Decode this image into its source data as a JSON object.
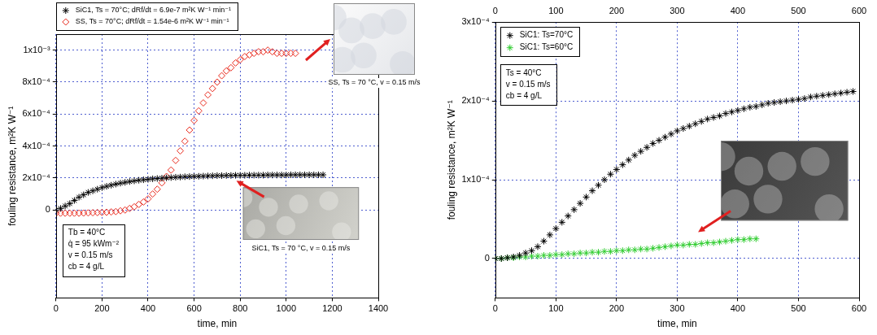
{
  "chart_data": [
    {
      "type": "scatter",
      "x_label": "time, min",
      "y_label": "fouling resistance, m²K W⁻¹",
      "xlim": [
        0,
        1400
      ],
      "xticks": [
        0,
        200,
        400,
        600,
        800,
        1000,
        1200,
        1400
      ],
      "ylim": [
        -0.00055,
        0.0011
      ],
      "yticks": [
        0,
        {
          "value": 0.0002,
          "label": "2x10⁻⁴"
        },
        {
          "value": 0.0004,
          "label": "4x10⁻⁴"
        },
        {
          "value": 0.0006,
          "label": "6x10⁻⁴"
        },
        {
          "value": 0.0008,
          "label": "8x10⁻⁴"
        },
        {
          "value": 0.001,
          "label": "1x10⁻³"
        }
      ],
      "grid": true,
      "legend": "top",
      "annotation": [
        "Tb = 40°C",
        "q̇ = 95 kWm⁻²",
        "v = 0.15 m/s",
        "cb = 4 g/L"
      ],
      "captions": [
        "SS, Ts = 70 °C, v = 0.15 m/s",
        "SiC1, Ts = 70 °C, v = 0.15 m/s"
      ],
      "series": [
        {
          "name": "SiC1, Ts = 70°C; dRf/dt = 6.9e-7 m²K W⁻¹ min⁻¹",
          "color": "#000000",
          "marker": "star",
          "x": [
            0,
            20,
            40,
            60,
            80,
            100,
            120,
            140,
            160,
            180,
            200,
            220,
            240,
            260,
            280,
            300,
            320,
            340,
            360,
            380,
            400,
            420,
            440,
            460,
            480,
            500,
            520,
            540,
            560,
            580,
            600,
            620,
            640,
            660,
            680,
            700,
            720,
            740,
            760,
            780,
            800,
            820,
            840,
            860,
            880,
            900,
            920,
            940,
            960,
            980,
            1000,
            1020,
            1040,
            1060,
            1080,
            1100,
            1120,
            1140,
            1160
          ],
          "values": [
            0,
            1e-05,
            2.5e-05,
            4e-05,
            6e-05,
            8e-05,
            9.5e-05,
            0.00011,
            0.00012,
            0.00013,
            0.00014,
            0.000148,
            0.000155,
            0.000162,
            0.000168,
            0.000173,
            0.000178,
            0.000182,
            0.000186,
            0.000189,
            0.000192,
            0.000195,
            0.000197,
            0.000199,
            0.000201,
            0.000203,
            0.000205,
            0.000206,
            0.000208,
            0.000209,
            0.00021,
            0.000211,
            0.000212,
            0.000213,
            0.000214,
            0.000215,
            0.000215,
            0.000216,
            0.000216,
            0.000217,
            0.000217,
            0.000217,
            0.000218,
            0.000218,
            0.000218,
            0.000218,
            0.000219,
            0.000219,
            0.000219,
            0.000219,
            0.000219,
            0.00022,
            0.00022,
            0.00022,
            0.00022,
            0.00022,
            0.00022,
            0.00022,
            0.00022
          ]
        },
        {
          "name": "SS, Ts = 70°C; dRf/dt = 1.54e-6 m²K W⁻¹ min⁻¹",
          "color": "#e8291c",
          "marker": "diamond",
          "x": [
            0,
            20,
            40,
            60,
            80,
            100,
            120,
            140,
            160,
            180,
            200,
            220,
            240,
            260,
            280,
            300,
            320,
            340,
            360,
            380,
            400,
            420,
            440,
            460,
            480,
            500,
            520,
            540,
            560,
            580,
            600,
            620,
            640,
            660,
            680,
            700,
            720,
            740,
            760,
            780,
            800,
            820,
            840,
            860,
            880,
            900,
            920,
            940,
            960,
            980,
            1000,
            1020,
            1040
          ],
          "values": [
            -2e-05,
            -2e-05,
            -2e-05,
            -2e-05,
            -2e-05,
            -2e-05,
            -1.9e-05,
            -1.8e-05,
            -1.7e-05,
            -1.6e-05,
            -1.5e-05,
            -1.4e-05,
            -1.2e-05,
            -1e-05,
            -5e-06,
            0,
            1e-05,
            2e-05,
            3.5e-05,
            5e-05,
            7e-05,
            0.0001,
            0.00013,
            0.00017,
            0.00021,
            0.00025,
            0.00031,
            0.00037,
            0.00043,
            0.0005,
            0.00056,
            0.00062,
            0.00067,
            0.00072,
            0.00076,
            0.0008,
            0.00084,
            0.00087,
            0.00089,
            0.00092,
            0.00094,
            0.00096,
            0.00097,
            0.00098,
            0.00099,
            0.00099,
            0.001,
            0.00099,
            0.00098,
            0.00098,
            0.00098,
            0.00098,
            0.00098
          ]
        }
      ]
    },
    {
      "type": "scatter",
      "x_label": "time, min",
      "y_label": "fouling resistance, m²K W⁻¹",
      "xlim": [
        0,
        600
      ],
      "xticks": [
        0,
        100,
        200,
        300,
        400,
        500,
        600
      ],
      "x2lim": [
        0,
        600
      ],
      "x2ticks": [
        0,
        100,
        200,
        300,
        400,
        500,
        600
      ],
      "ylim": [
        -5e-05,
        0.0003
      ],
      "yticks": [
        0,
        {
          "value": 0.0001,
          "label": "1x10⁻⁴"
        },
        {
          "value": 0.0002,
          "label": "2x10⁻⁴"
        },
        {
          "value": 0.0003,
          "label": "3x10⁻⁴"
        }
      ],
      "grid": true,
      "legend": "upper left",
      "annotation": [
        "Ts = 40°C",
        "v = 0.15 m/s",
        "cb = 4 g/L"
      ],
      "series": [
        {
          "name": "SiC1: Ts=70°C",
          "color": "#000000",
          "marker": "star",
          "x": [
            0,
            10,
            20,
            30,
            40,
            50,
            60,
            70,
            80,
            90,
            100,
            110,
            120,
            130,
            140,
            150,
            160,
            170,
            180,
            190,
            200,
            210,
            220,
            230,
            240,
            250,
            260,
            270,
            280,
            290,
            300,
            310,
            320,
            330,
            340,
            350,
            360,
            370,
            380,
            390,
            400,
            410,
            420,
            430,
            440,
            450,
            460,
            470,
            480,
            490,
            500,
            510,
            520,
            530,
            540,
            550,
            560,
            570,
            580,
            590
          ],
          "values": [
            0,
            0,
            1e-06,
            2e-06,
            4e-06,
            7e-06,
            1e-05,
            1.5e-05,
            2.2e-05,
            3e-05,
            3.8e-05,
            4.6e-05,
            5.4e-05,
            6.2e-05,
            7e-05,
            7.8e-05,
            8.6e-05,
            9.3e-05,
            0.0001,
            0.000107,
            0.000113,
            0.000119,
            0.000125,
            0.000131,
            0.000136,
            0.000141,
            0.000146,
            0.00015,
            0.000154,
            0.000158,
            0.000162,
            0.000165,
            0.000168,
            0.000171,
            0.000174,
            0.000177,
            0.000179,
            0.000181,
            0.000184,
            0.000186,
            0.000188,
            0.00019,
            0.000192,
            0.000193,
            0.000195,
            0.000197,
            0.000198,
            0.000199,
            0.0002,
            0.000201,
            0.000202,
            0.000203,
            0.000205,
            0.000206,
            0.000207,
            0.000208,
            0.000209,
            0.00021,
            0.000211,
            0.000212
          ]
        },
        {
          "name": "SiC1: Ts=60°C",
          "color": "#2ecc2e",
          "marker": "star",
          "x": [
            0,
            10,
            20,
            30,
            40,
            50,
            60,
            70,
            80,
            90,
            100,
            110,
            120,
            130,
            140,
            150,
            160,
            170,
            180,
            190,
            200,
            210,
            220,
            230,
            240,
            250,
            260,
            270,
            280,
            290,
            300,
            310,
            320,
            330,
            340,
            350,
            360,
            370,
            380,
            390,
            400,
            410,
            420,
            430
          ],
          "values": [
            0,
            0,
            1e-06,
            1e-06,
            2e-06,
            2e-06,
            3e-06,
            3e-06,
            4e-06,
            4e-06,
            5e-06,
            5e-06,
            6e-06,
            6e-06,
            7e-06,
            7e-06,
            8e-06,
            8e-06,
            9e-06,
            9e-06,
            1e-05,
            1e-05,
            1.1e-05,
            1.1e-05,
            1.2e-05,
            1.2e-05,
            1.3e-05,
            1.4e-05,
            1.5e-05,
            1.6e-05,
            1.7e-05,
            1.7e-05,
            1.8e-05,
            1.8e-05,
            1.9e-05,
            2e-05,
            2e-05,
            2.1e-05,
            2.2e-05,
            2.3e-05,
            2.4e-05,
            2.4e-05,
            2.5e-05,
            2.5e-05
          ]
        }
      ]
    }
  ]
}
